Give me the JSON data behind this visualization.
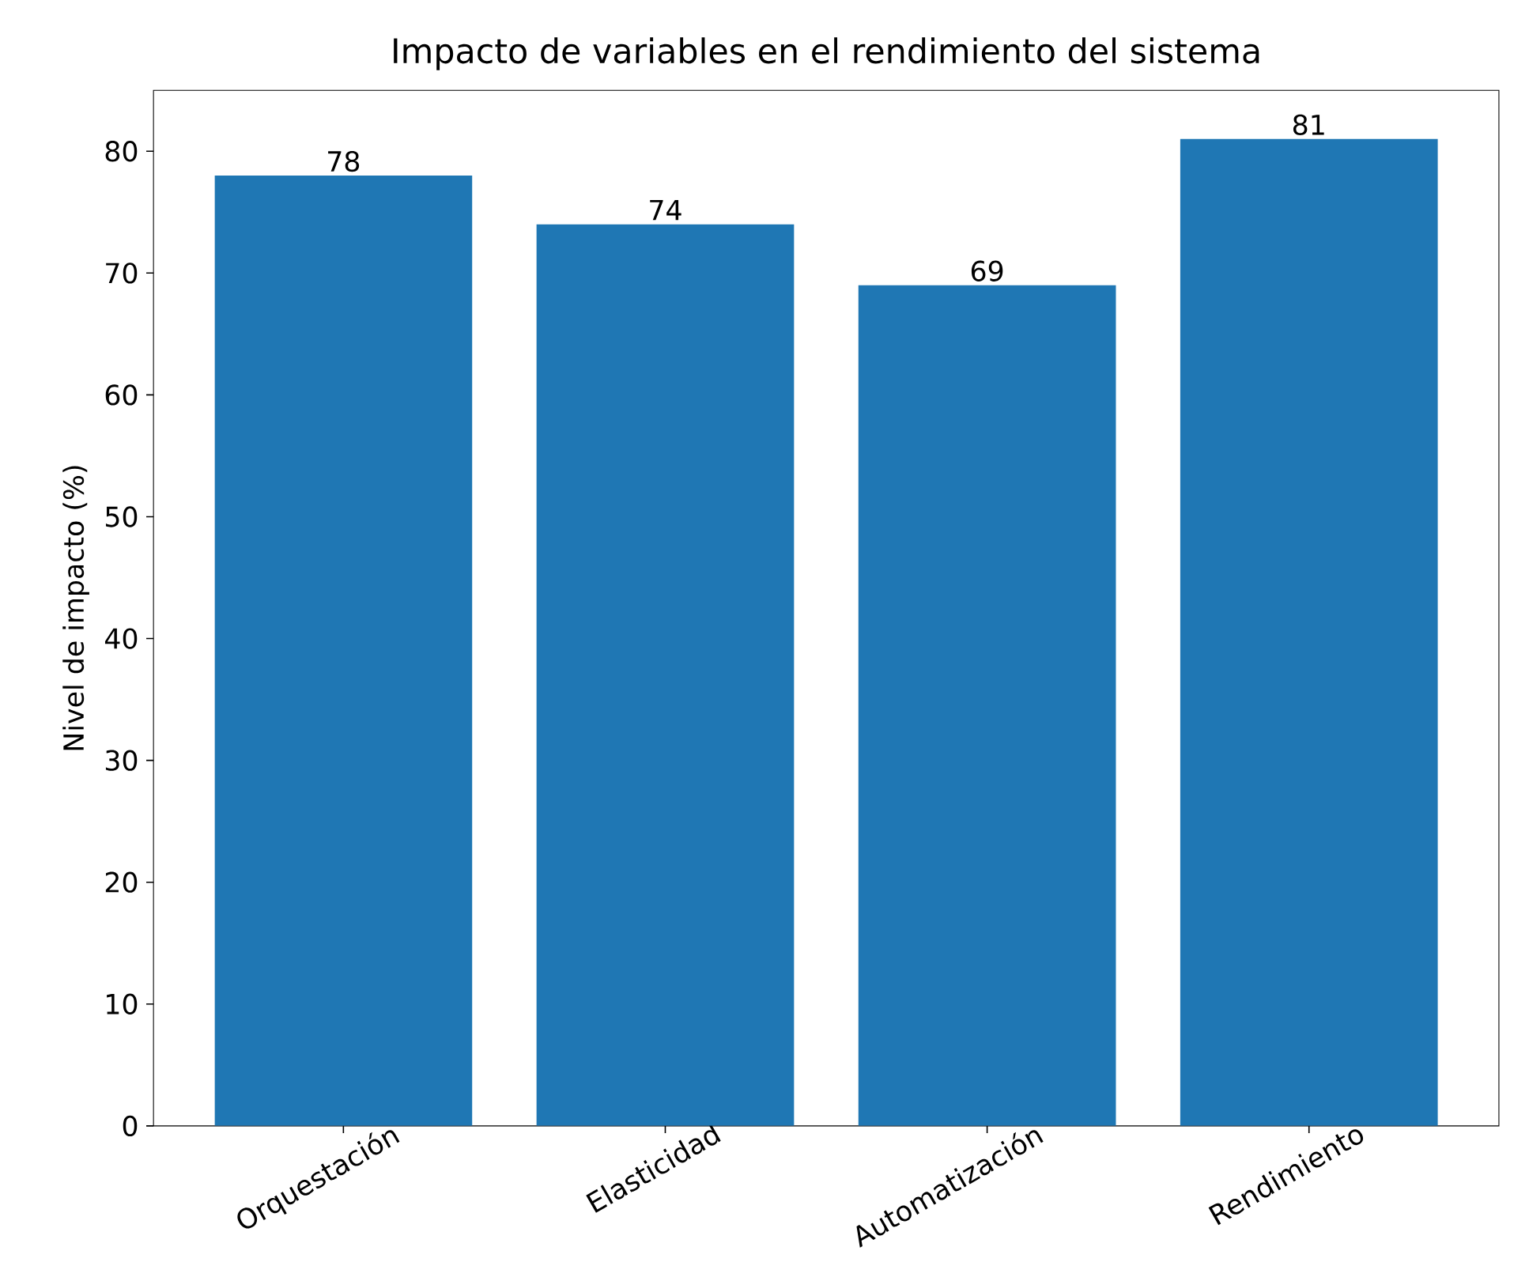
{
  "chart_data": {
    "type": "bar",
    "title": "Impacto de variables en el rendimiento del sistema",
    "ylabel": "Nivel de impacto (%)",
    "categories": [
      "Orquestación",
      "Elasticidad",
      "Automatización",
      "Rendimiento"
    ],
    "values": [
      78,
      74,
      69,
      81
    ],
    "color": "#1f77b4",
    "ylim": [
      0,
      85
    ],
    "yticks": [
      0,
      10,
      20,
      30,
      40,
      50,
      60,
      70,
      80
    ],
    "data_labels": true
  }
}
